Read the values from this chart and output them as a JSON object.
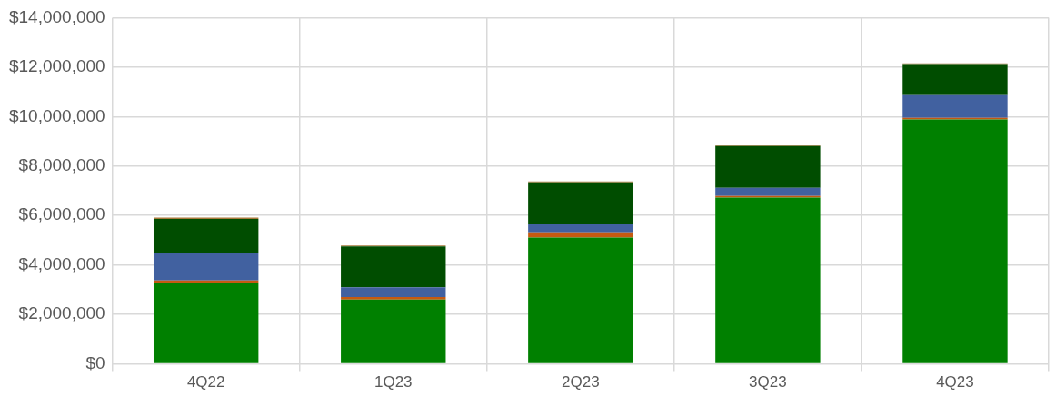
{
  "chart_data": {
    "type": "bar",
    "stacked": true,
    "categories": [
      "4Q22",
      "1Q23",
      "2Q23",
      "3Q23",
      "4Q23"
    ],
    "series": [
      {
        "color": "#008000",
        "values": [
          3260000,
          2600000,
          5110000,
          6720000,
          9880000
        ]
      },
      {
        "color": "#c55a11",
        "values": [
          110000,
          100000,
          210000,
          70000,
          70000
        ]
      },
      {
        "color": "#4161a0",
        "values": [
          1120000,
          400000,
          320000,
          330000,
          920000
        ]
      },
      {
        "color": "#004d00",
        "values": [
          1370000,
          1650000,
          1700000,
          1690000,
          1250000
        ]
      },
      {
        "color": "#a87a3c",
        "values": [
          60000,
          40000,
          40000,
          30000,
          30000
        ]
      }
    ],
    "ylim": [
      0,
      14000000
    ],
    "yticks": [
      {
        "value": 0,
        "label": "$0"
      },
      {
        "value": 2000000,
        "label": "$2,000,000"
      },
      {
        "value": 4000000,
        "label": "$4,000,000"
      },
      {
        "value": 6000000,
        "label": "$6,000,000"
      },
      {
        "value": 8000000,
        "label": "$8,000,000"
      },
      {
        "value": 10000000,
        "label": "$10,000,000"
      },
      {
        "value": 12000000,
        "label": "$12,000,000"
      },
      {
        "value": 14000000,
        "label": "$14,000,000"
      }
    ],
    "grid": true,
    "legend": false
  }
}
